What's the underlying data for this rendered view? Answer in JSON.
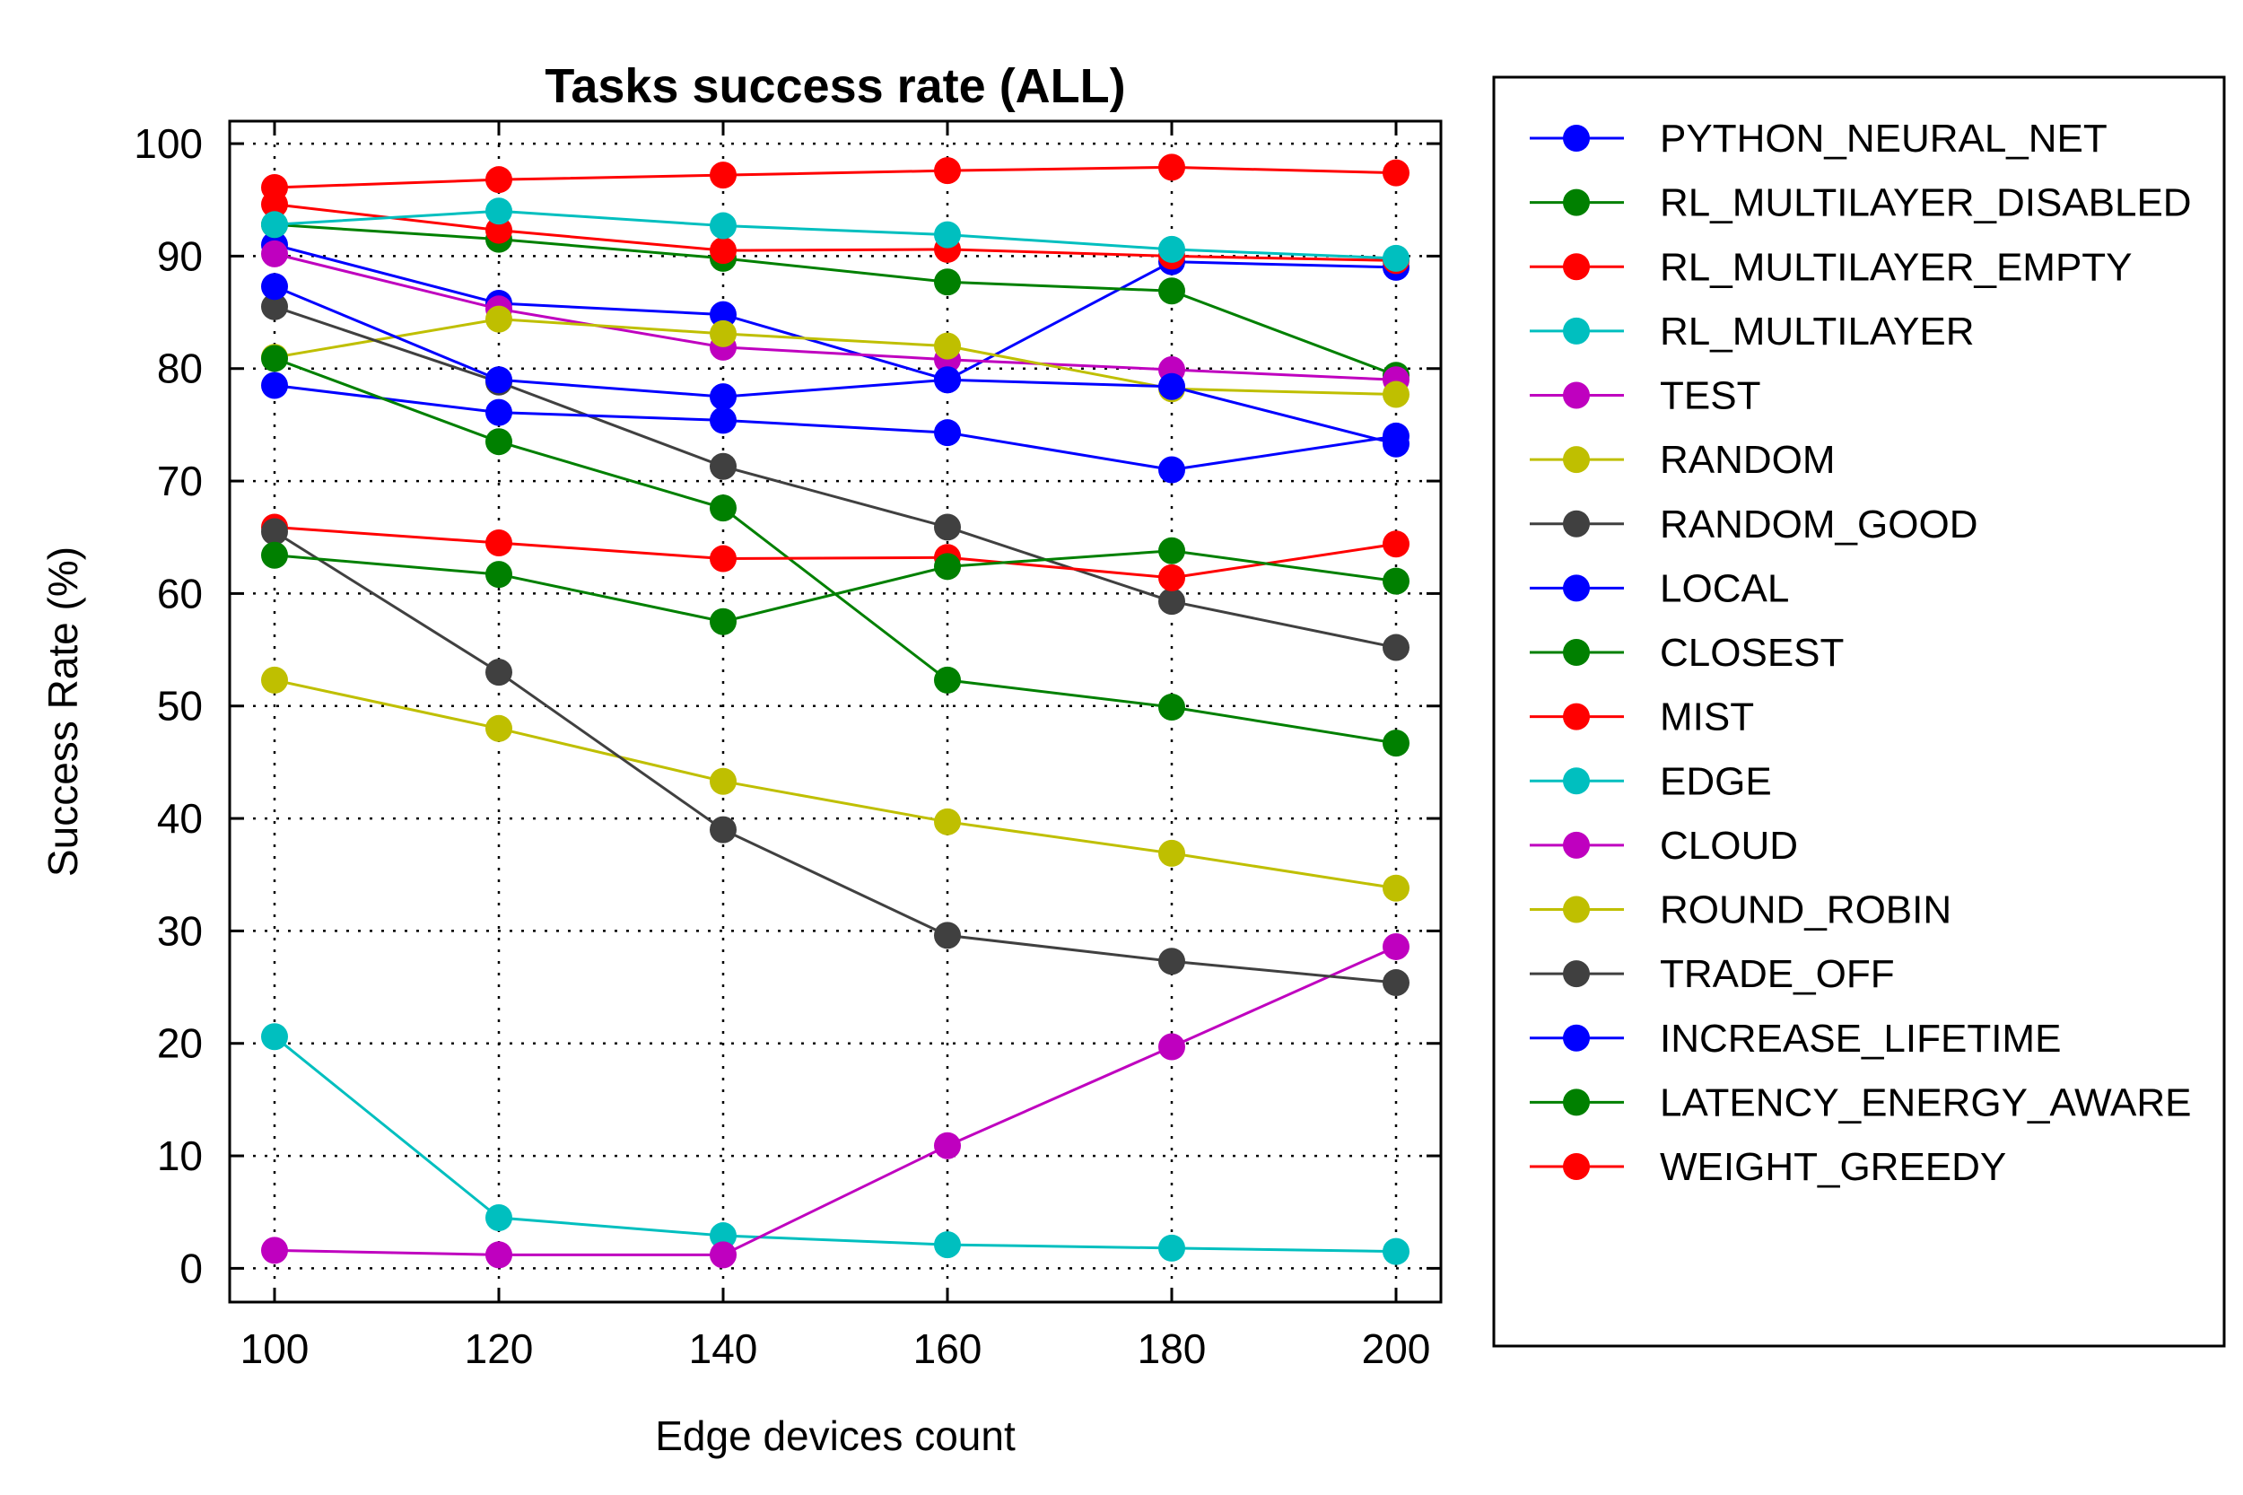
{
  "chart_data": {
    "type": "line",
    "title": "Tasks success rate (ALL)",
    "xlabel": "Edge devices count",
    "ylabel": "Success Rate (%)",
    "x": [
      100,
      120,
      140,
      160,
      180,
      200
    ],
    "x_ticks": [
      "100",
      "120",
      "140",
      "160",
      "180",
      "200"
    ],
    "y_ticks": [
      "0",
      "10",
      "20",
      "30",
      "40",
      "50",
      "60",
      "70",
      "80",
      "90",
      "100"
    ],
    "xlim": [
      96,
      204
    ],
    "ylim": [
      -3,
      102
    ],
    "grid": true,
    "legend_position": "outside-right",
    "series": [
      {
        "name": "PYTHON_NEURAL_NET",
        "color": "#0000ff",
        "values": [
          91.0,
          85.8,
          84.8,
          79.0,
          89.5,
          89.0
        ]
      },
      {
        "name": "RL_MULTILAYER_DISABLED",
        "color": "#008000",
        "values": [
          92.8,
          91.5,
          89.8,
          87.7,
          86.9,
          79.4
        ]
      },
      {
        "name": "RL_MULTILAYER_EMPTY",
        "color": "#ff0000",
        "values": [
          94.6,
          92.3,
          90.5,
          90.6,
          90.0,
          89.6
        ]
      },
      {
        "name": "RL_MULTILAYER",
        "color": "#00bfbf",
        "values": [
          92.8,
          94.0,
          92.7,
          91.9,
          90.6,
          89.8
        ]
      },
      {
        "name": "TEST",
        "color": "#bf00bf",
        "values": [
          90.2,
          85.3,
          81.9,
          80.8,
          79.9,
          79.0
        ]
      },
      {
        "name": "RANDOM",
        "color": "#bfbf00",
        "values": [
          81.0,
          84.4,
          83.1,
          82.0,
          78.2,
          77.7
        ]
      },
      {
        "name": "RANDOM_GOOD",
        "color": "#404040",
        "values": [
          85.5,
          78.8,
          71.3,
          65.9,
          59.3,
          55.2
        ]
      },
      {
        "name": "LOCAL",
        "color": "#0000ff",
        "values": [
          78.5,
          76.1,
          75.4,
          74.3,
          71.0,
          74.0
        ]
      },
      {
        "name": "CLOSEST",
        "color": "#008000",
        "values": [
          80.9,
          73.5,
          67.6,
          52.3,
          49.9,
          46.7
        ]
      },
      {
        "name": "MIST",
        "color": "#ff0000",
        "values": [
          65.9,
          64.5,
          63.1,
          63.2,
          61.4,
          64.4
        ]
      },
      {
        "name": "EDGE",
        "color": "#00bfbf",
        "values": [
          20.6,
          4.5,
          2.9,
          2.1,
          1.8,
          1.5
        ]
      },
      {
        "name": "CLOUD",
        "color": "#bf00bf",
        "values": [
          1.6,
          1.2,
          1.2,
          10.9,
          19.7,
          28.6
        ]
      },
      {
        "name": "ROUND_ROBIN",
        "color": "#bfbf00",
        "values": [
          52.3,
          48.0,
          43.3,
          39.7,
          36.9,
          33.8
        ]
      },
      {
        "name": "TRADE_OFF",
        "color": "#404040",
        "values": [
          65.5,
          53.0,
          39.0,
          29.6,
          27.3,
          25.4
        ]
      },
      {
        "name": "INCREASE_LIFETIME",
        "color": "#0000ff",
        "values": [
          87.3,
          79.0,
          77.5,
          79.0,
          78.4,
          73.3
        ]
      },
      {
        "name": "LATENCY_ENERGY_AWARE",
        "color": "#008000",
        "values": [
          63.4,
          61.7,
          57.5,
          62.4,
          63.8,
          61.1
        ]
      },
      {
        "name": "WEIGHT_GREEDY",
        "color": "#ff0000",
        "values": [
          96.1,
          96.8,
          97.2,
          97.6,
          97.9,
          97.4
        ]
      }
    ]
  }
}
